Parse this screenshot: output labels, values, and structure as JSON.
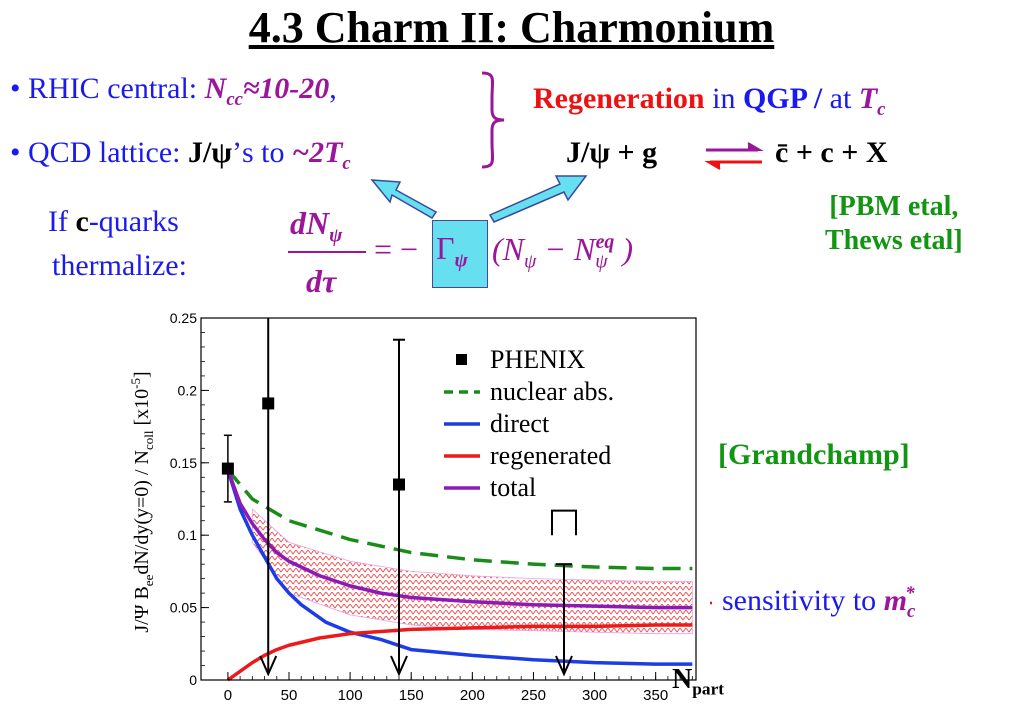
{
  "title": "4.3 Charm II: Charmonium",
  "bullets": [
    {
      "bullet": "•",
      "label": "RHIC central: ",
      "var": "N",
      "var_sub": "cc",
      "value": "≈10-20",
      "trail": ","
    },
    {
      "bullet": "•",
      "label": "QCD lattice: ",
      "bold": "J/ψ",
      "mid": "’s to ",
      "value": "~2T",
      "value_sub": "c"
    }
  ],
  "regen": {
    "word": "Regeneration",
    "in": " in ",
    "qgp": "QGP",
    "slash": " / ",
    "at": "at ",
    "T": "T",
    "T_sub": "c"
  },
  "reaction": {
    "left": "J/ψ + g",
    "right": "c̄ + c + X"
  },
  "refs": {
    "line1": "[PBM etal,",
    "line2": "Thews etal]",
    "grandchamp": "[Grandchamp]"
  },
  "thermalize": {
    "if": "If ",
    "c": "c",
    "rest": "-quarks",
    "line2": "thermalize:"
  },
  "equation": {
    "dN": "dN",
    "psi": "ψ",
    "dtau": "dτ",
    "eq_minus": "= −",
    "Gamma": "Γ",
    "paren_open": "(N",
    "minus": " − N",
    "eq_sup": "eq",
    "paren_close": ")"
  },
  "sensitivity": {
    "text": "sensitivity to ",
    "m": "m",
    "m_sub": "c",
    "m_sup": "*"
  },
  "chart_data": {
    "type": "line",
    "ylabel": "J/Ψ B_ee dN/dy(y=0) / N_coll [x10^-5]",
    "ylabel_parts": {
      "a": "J/Ψ B",
      "a_sub": "ee",
      "b": "dN/dy(y=0) / N",
      "b_sub": "coll",
      "c": " [x10",
      "c_sup": "-5",
      "d": "]"
    },
    "xlabel": "N",
    "xlabel_sub": "part",
    "xlim": [
      0,
      380
    ],
    "ylim": [
      0,
      0.25
    ],
    "xticks": [
      "0",
      "50",
      "100",
      "150",
      "200",
      "250",
      "300",
      "350"
    ],
    "yticks": [
      "0",
      "0.05",
      "0.1",
      "0.15",
      "0.2",
      "0.25"
    ],
    "legend": [
      "PHENIX",
      "nuclear abs.",
      "direct",
      "regenerated",
      "total"
    ],
    "colors": {
      "nuclear": "#1a8c1a",
      "direct": "#1c3ce6",
      "regenerated": "#ee1a1a",
      "total": "#8c1ab4",
      "band": "#ee3333"
    },
    "phenix": [
      {
        "x": 0,
        "y": 0.146,
        "err": 0.023
      },
      {
        "x": 33,
        "y": 0.191,
        "lower_limit_arrow": true
      },
      {
        "x": 140,
        "y": 0.135,
        "err": 0.1,
        "lower_limit_arrow": true
      },
      {
        "x": 275,
        "y": 0.08,
        "upper_limit": true
      }
    ],
    "series": [
      {
        "name": "nuclear abs.",
        "x": [
          0,
          20,
          50,
          100,
          150,
          200,
          250,
          300,
          350,
          380
        ],
        "y": [
          0.145,
          0.125,
          0.11,
          0.097,
          0.088,
          0.083,
          0.08,
          0.078,
          0.077,
          0.077
        ]
      },
      {
        "name": "direct",
        "x": [
          0,
          10,
          20,
          30,
          40,
          50,
          60,
          80,
          100,
          125,
          150,
          200,
          250,
          300,
          350,
          380
        ],
        "y": [
          0.145,
          0.118,
          0.1,
          0.085,
          0.07,
          0.06,
          0.052,
          0.04,
          0.033,
          0.028,
          0.021,
          0.017,
          0.014,
          0.012,
          0.011,
          0.011
        ]
      },
      {
        "name": "regenerated",
        "x": [
          0,
          10,
          20,
          30,
          40,
          50,
          75,
          100,
          150,
          200,
          250,
          300,
          350,
          380
        ],
        "y": [
          0.0,
          0.006,
          0.012,
          0.017,
          0.021,
          0.024,
          0.029,
          0.032,
          0.035,
          0.036,
          0.037,
          0.037,
          0.038,
          0.038
        ]
      },
      {
        "name": "total",
        "x": [
          0,
          10,
          20,
          30,
          40,
          50,
          75,
          100,
          125,
          150,
          200,
          250,
          300,
          350,
          380
        ],
        "y": [
          0.145,
          0.122,
          0.108,
          0.097,
          0.088,
          0.082,
          0.072,
          0.065,
          0.06,
          0.057,
          0.054,
          0.052,
          0.051,
          0.05,
          0.05
        ]
      }
    ],
    "band": {
      "x": [
        20,
        50,
        100,
        150,
        200,
        250,
        300,
        350,
        380
      ],
      "upper": [
        0.118,
        0.095,
        0.082,
        0.075,
        0.072,
        0.07,
        0.069,
        0.068,
        0.068
      ],
      "lower": [
        0.095,
        0.06,
        0.045,
        0.038,
        0.035,
        0.034,
        0.033,
        0.032,
        0.032
      ]
    }
  }
}
